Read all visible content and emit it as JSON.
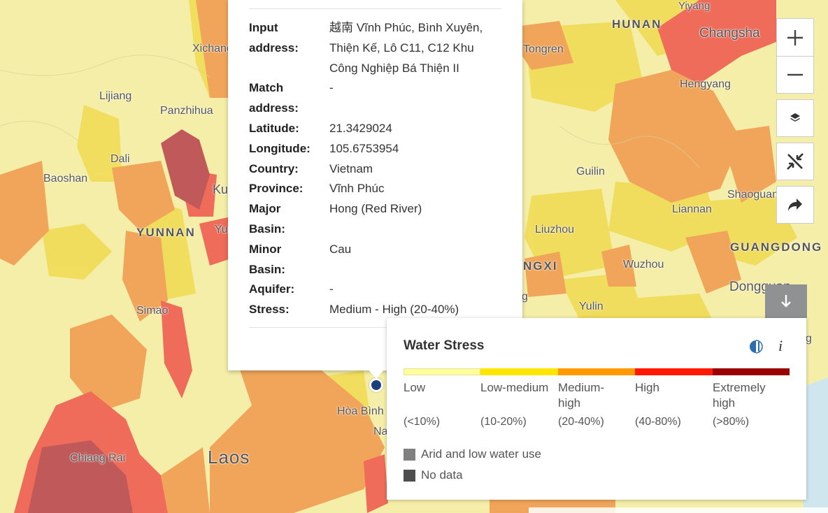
{
  "map": {
    "places": [
      {
        "name": "Xichang",
        "kind": "city"
      },
      {
        "name": "Lijiang",
        "kind": "city"
      },
      {
        "name": "Panzhihua",
        "kind": "city"
      },
      {
        "name": "Dali",
        "kind": "city"
      },
      {
        "name": "Baoshan",
        "kind": "city"
      },
      {
        "name": "YUNNAN",
        "kind": "province"
      },
      {
        "name": "Ku",
        "kind": "city"
      },
      {
        "name": "Yu",
        "kind": "city"
      },
      {
        "name": "Simao",
        "kind": "city"
      },
      {
        "name": "Chiang Rai",
        "kind": "city"
      },
      {
        "name": "Laos",
        "kind": "country"
      },
      {
        "name": "Hòa Bình",
        "kind": "city"
      },
      {
        "name": "Na",
        "kind": "city"
      },
      {
        "name": "HUNAN",
        "kind": "province"
      },
      {
        "name": "Yiyang",
        "kind": "city"
      },
      {
        "name": "Changsha",
        "kind": "city"
      },
      {
        "name": "Tongren",
        "kind": "city"
      },
      {
        "name": "Hengyang",
        "kind": "city"
      },
      {
        "name": "Guilin",
        "kind": "city"
      },
      {
        "name": "Shaoguan",
        "kind": "city"
      },
      {
        "name": "Liannan",
        "kind": "city"
      },
      {
        "name": "Liuzhou",
        "kind": "city"
      },
      {
        "name": "GUANGDONG",
        "kind": "province"
      },
      {
        "name": "NGXI",
        "kind": "province"
      },
      {
        "name": "Wuzhou",
        "kind": "city"
      },
      {
        "name": "Dongguan",
        "kind": "city"
      },
      {
        "name": "Yulin",
        "kind": "city"
      },
      {
        "name": "g",
        "kind": "city"
      }
    ],
    "marker_icon": "location-pin-icon"
  },
  "popup": {
    "fields": [
      {
        "label": "Input address:",
        "value": "越南 Vĩnh Phúc, Bình Xuyên, Thiện Kế, Lô C11, C12 Khu Công Nghiệp Bá Thiện II"
      },
      {
        "label": "Match address:",
        "value": "-"
      },
      {
        "label": "Latitude:",
        "value": "21.3429024"
      },
      {
        "label": "Longitude:",
        "value": "105.6753954"
      },
      {
        "label": "Country:",
        "value": "Vietnam"
      },
      {
        "label": "Province:",
        "value": "Vĩnh Phúc"
      },
      {
        "label": "Major Basin:",
        "value": "Hong (Red River)"
      },
      {
        "label": "Minor Basin:",
        "value": "Cau"
      },
      {
        "label": "Aquifer:",
        "value": "-"
      },
      {
        "label": "Stress:",
        "value": "Medium - High (20-40%)"
      }
    ]
  },
  "controls": {
    "zoom_in_icon": "plus-icon",
    "zoom_out_icon": "minus-icon",
    "layers_icon": "layers-icon",
    "collapse_icon": "collapse-arrows-icon",
    "share_icon": "share-arrow-icon",
    "download_icon": "arrow-down-icon"
  },
  "legend": {
    "title": "Water Stress",
    "toggle_icon": "half-circle-icon",
    "info_icon": "info-icon",
    "classes": [
      {
        "label": "Low",
        "range": "(<10%)",
        "color": "#ffff99"
      },
      {
        "label": "Low-medium",
        "range": "(10-20%)",
        "color": "#ffe600"
      },
      {
        "label": "Medium-high",
        "range": "(20-40%)",
        "color": "#ff9900"
      },
      {
        "label": "High",
        "range": "(40-80%)",
        "color": "#ff1900"
      },
      {
        "label": "Extremely high",
        "range": "(>80%)",
        "color": "#990000"
      }
    ],
    "extra": [
      {
        "label": "Arid and low water use",
        "color": "#808080"
      },
      {
        "label": "No data",
        "color": "#4e4e4e"
      }
    ]
  },
  "colors": {
    "low": "#f4eea8",
    "low_medium": "#f2de52",
    "medium_high": "#f0a54a",
    "high": "#ef6a4a",
    "extreme": "#c05a5a",
    "marker": "#1d3f7a"
  }
}
